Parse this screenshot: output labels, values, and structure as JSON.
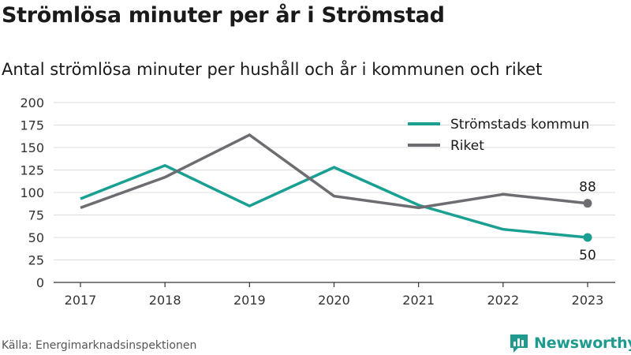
{
  "title": "Strömlösa minuter per år i Strömstad",
  "subtitle": "Antal strömlösa minuter per hushåll och år i kommunen och riket",
  "source": "Källa: Energimarknadsinspektionen",
  "brand": {
    "name": "Newsworthy",
    "icon": "newsworthy-logo-icon",
    "color": "#1e9b8e"
  },
  "chart_data": {
    "type": "line",
    "x": [
      "2017",
      "2018",
      "2019",
      "2020",
      "2021",
      "2022",
      "2023"
    ],
    "ylim": [
      0,
      200
    ],
    "yticks": [
      0,
      25,
      50,
      75,
      100,
      125,
      150,
      175,
      200
    ],
    "grid": true,
    "legend": "top-right",
    "series": [
      {
        "name": "Strömstads kommun",
        "color": "#19a092",
        "values": [
          93,
          130,
          85,
          128,
          86,
          59,
          50
        ],
        "end_label": "50"
      },
      {
        "name": "Riket",
        "color": "#6d6c70",
        "values": [
          83,
          117,
          164,
          96,
          83,
          98,
          88
        ],
        "end_label": "88"
      }
    ]
  }
}
